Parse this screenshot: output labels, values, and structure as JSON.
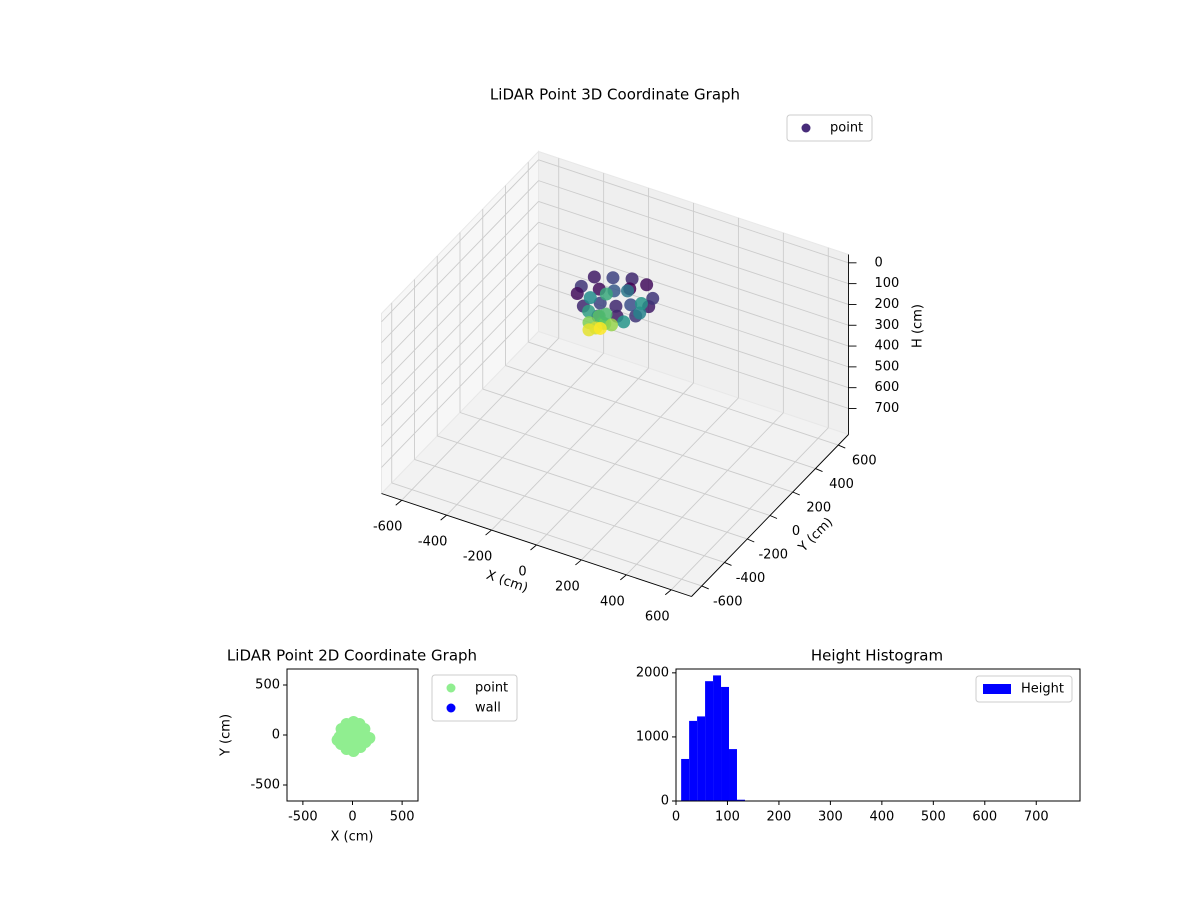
{
  "chart_data": [
    {
      "type": "scatter3d",
      "title": "LiDAR Point 3D Coordinate Graph",
      "xlabel": "X (cm)",
      "ylabel": "Y (cm)",
      "zlabel": "H (cm)",
      "xlim": [
        -690,
        690
      ],
      "xticks": [
        -600,
        -400,
        -200,
        0,
        200,
        400,
        600
      ],
      "ylim": [
        -690,
        690
      ],
      "yticks": [
        -600,
        -400,
        -200,
        0,
        200,
        400,
        600
      ],
      "zlim": [
        -40,
        825
      ],
      "zticks": [
        0,
        100,
        200,
        300,
        400,
        500,
        600,
        700
      ],
      "z_inverted": true,
      "grid": true,
      "legend": "upper right",
      "colormap": [
        "#440154",
        "#3b528b",
        "#21918c",
        "#5ec962",
        "#fde725"
      ],
      "series": [
        {
          "name": "point",
          "color": "#472c7a",
          "x": [
            150,
            130,
            75,
            0,
            -75,
            -130,
            -150,
            -130,
            -75,
            0,
            75,
            130,
            70,
            35,
            -35,
            -70,
            -35,
            35,
            110,
            78,
            0,
            -78,
            -110,
            -78,
            0,
            78,
            -40,
            0,
            -60,
            -20,
            20,
            -30,
            -50,
            -20
          ],
          "y": [
            0,
            75,
            130,
            150,
            130,
            75,
            0,
            -75,
            -130,
            -150,
            -130,
            -75,
            0,
            61,
            61,
            0,
            -61,
            -61,
            0,
            78,
            110,
            78,
            0,
            -78,
            -110,
            -78,
            -60,
            -90,
            -110,
            -40,
            -70,
            -110,
            -130,
            -90
          ],
          "z": [
            15,
            25,
            10,
            20,
            30,
            15,
            25,
            10,
            20,
            30,
            15,
            25,
            35,
            5,
            40,
            10,
            30,
            20,
            60,
            70,
            55,
            80,
            65,
            75,
            85,
            70,
            95,
            100,
            105,
            90,
            110,
            120,
            125,
            130
          ]
        }
      ]
    },
    {
      "type": "scatter",
      "title": "LiDAR Point 2D Coordinate Graph",
      "xlabel": "X (cm)",
      "ylabel": "Y (cm)",
      "xlim": [
        -660,
        660
      ],
      "xticks": [
        -500,
        0,
        500
      ],
      "ylim": [
        -660,
        660
      ],
      "yticks": [
        -500,
        0,
        500
      ],
      "legend": "outside right",
      "series": [
        {
          "name": "point",
          "color": "#90ee90",
          "x": [
            140,
            120,
            70,
            10,
            -60,
            -110,
            -130,
            -115,
            -60,
            10,
            80,
            130,
            60,
            0,
            -50,
            20,
            -20,
            40,
            -30,
            170,
            -150
          ],
          "y": [
            -20,
            60,
            110,
            130,
            110,
            60,
            -20,
            -90,
            -140,
            -160,
            -120,
            -70,
            20,
            50,
            -10,
            -60,
            -100,
            -30,
            10,
            -30,
            -50
          ]
        },
        {
          "name": "wall",
          "color": "#0000ff",
          "x": [],
          "y": []
        }
      ]
    },
    {
      "type": "histogram",
      "title": "Height Histogram",
      "bins": [
        10,
        25.5,
        41,
        56.5,
        72,
        87.5,
        103,
        118.5,
        134,
        149.5,
        165,
        180.5,
        196,
        211.5,
        227,
        242.5,
        258,
        273.5,
        289,
        304.5,
        320,
        335.5,
        351,
        366.5,
        382,
        397.5,
        413,
        428.5,
        444,
        459.5,
        475,
        490.5,
        506,
        521.5,
        537,
        552.5,
        568,
        583.5,
        599,
        614.5,
        630,
        645.5,
        661,
        676.5,
        692,
        707.5,
        723,
        738.5,
        754,
        769.5,
        785
      ],
      "xlim": [
        0,
        785
      ],
      "xticks": [
        0,
        100,
        200,
        300,
        400,
        500,
        600,
        700
      ],
      "ylim": [
        0,
        2060
      ],
      "yticks": [
        0,
        1000,
        2000
      ],
      "legend": "upper right",
      "series": [
        {
          "name": "Height",
          "color": "#0000ff",
          "values": [
            656,
            1250,
            1320,
            1870,
            1960,
            1780,
            810,
            20,
            0,
            0,
            0,
            0,
            0,
            0,
            0,
            0,
            0,
            0,
            0,
            0,
            0,
            0,
            0,
            0,
            0,
            0,
            0,
            0,
            0,
            0,
            0,
            0,
            0,
            0,
            0,
            0,
            0,
            0,
            0,
            0,
            0,
            0,
            0,
            0,
            0,
            0,
            0,
            0,
            0,
            0
          ]
        }
      ]
    }
  ]
}
